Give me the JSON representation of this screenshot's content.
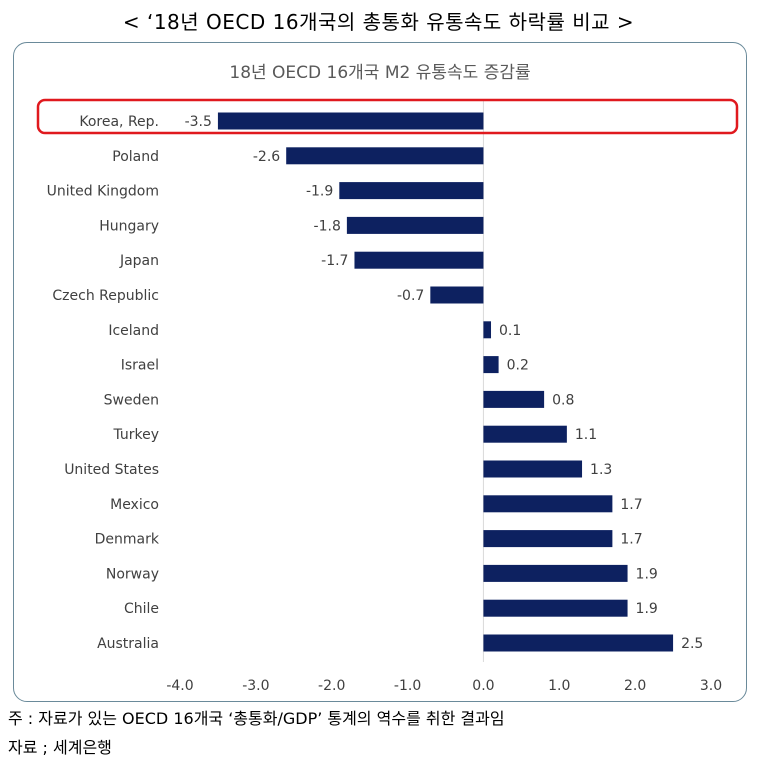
{
  "page_title": "< ‘18년 OECD 16개국의 총통화 유통속도 하락률 비교  >",
  "footnote": "주 : 자료가 있는 OECD 16개국 ‘총통화/GDP’ 통계의 역수를 취한 결과임",
  "source": "자료 ; 세계은행",
  "chart_data": {
    "type": "bar",
    "orientation": "horizontal",
    "title": "18년 OECD 16개국 M2 유통속도 증감률",
    "categories": [
      "Korea, Rep.",
      "Poland",
      "United Kingdom",
      "Hungary",
      "Japan",
      "Czech Republic",
      "Iceland",
      "Israel",
      "Sweden",
      "Turkey",
      "United States",
      "Mexico",
      "Denmark",
      "Norway",
      "Chile",
      "Australia"
    ],
    "values": [
      -3.5,
      -2.6,
      -1.9,
      -1.8,
      -1.7,
      -0.7,
      0.1,
      0.2,
      0.8,
      1.1,
      1.3,
      1.7,
      1.7,
      1.9,
      1.9,
      2.5
    ],
    "data_labels": [
      "-3.5",
      "-2.6",
      "-1.9",
      "-1.8",
      "-1.7",
      "-0.7",
      "0.1",
      "0.2",
      "0.8",
      "1.1",
      "1.3",
      "1.7",
      "1.7",
      "1.9",
      "1.9",
      "2.5"
    ],
    "xlim": [
      -4.0,
      3.0
    ],
    "x_ticks": [
      "-4.0",
      "-3.0",
      "-2.0",
      "-1.0",
      "0.0",
      "1.0",
      "2.0",
      "3.0"
    ],
    "grid": false,
    "highlight": "Korea, Rep.",
    "colors": {
      "bar": "#0d2160",
      "highlight_box": "#e0191e",
      "zero_line": "#d9d9d9"
    }
  }
}
